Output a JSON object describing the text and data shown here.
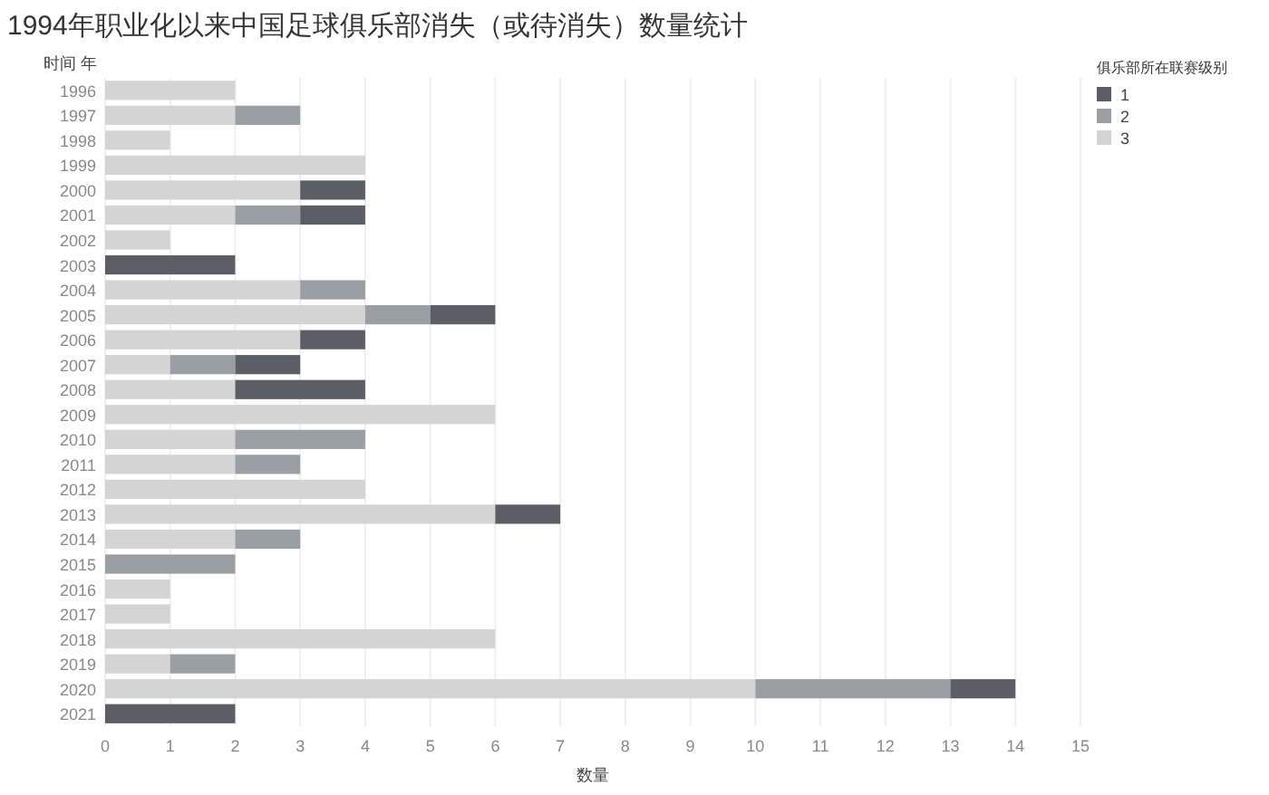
{
  "chart_data": {
    "type": "bar",
    "orientation": "horizontal",
    "stacked": true,
    "title": "1994年职业化以来中国足球俱乐部消失（或待消失）数量统计",
    "ylabel": "时间 年",
    "xlabel": "数量",
    "legend_title": "俱乐部所在联赛级别",
    "legend": "top right",
    "grid": "x",
    "categories": [
      "1996",
      "1997",
      "1998",
      "1999",
      "2000",
      "2001",
      "2002",
      "2003",
      "2004",
      "2005",
      "2006",
      "2007",
      "2008",
      "2009",
      "2010",
      "2011",
      "2012",
      "2013",
      "2014",
      "2015",
      "2016",
      "2017",
      "2018",
      "2019",
      "2020",
      "2021"
    ],
    "series": [
      {
        "name": "3",
        "color": "#d4d4d4",
        "values": [
          2,
          2,
          1,
          4,
          3,
          2,
          1,
          null,
          3,
          4,
          3,
          1,
          2,
          6,
          2,
          2,
          4,
          6,
          2,
          null,
          1,
          1,
          6,
          1,
          10,
          null
        ]
      },
      {
        "name": "2",
        "color": "#9a9ea5",
        "values": [
          null,
          1,
          null,
          null,
          null,
          1,
          null,
          null,
          1,
          1,
          null,
          1,
          null,
          null,
          2,
          1,
          null,
          null,
          1,
          2,
          null,
          null,
          null,
          1,
          3,
          null
        ]
      },
      {
        "name": "1",
        "color": "#5b5e66",
        "values": [
          null,
          null,
          null,
          null,
          1,
          1,
          null,
          2,
          null,
          1,
          1,
          1,
          2,
          null,
          null,
          null,
          null,
          1,
          null,
          null,
          null,
          null,
          null,
          null,
          1,
          2
        ]
      }
    ],
    "xlim": [
      0,
      15
    ],
    "xticks": [
      0,
      1,
      2,
      3,
      4,
      5,
      6,
      7,
      8,
      9,
      10,
      11,
      12,
      13,
      14,
      15
    ]
  }
}
